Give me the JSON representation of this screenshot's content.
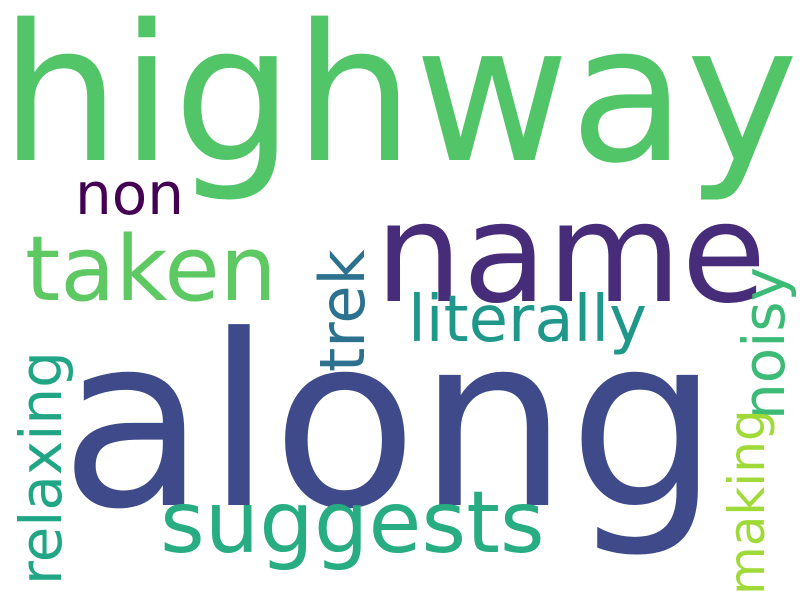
{
  "word_cloud": {
    "background": "#ffffff",
    "words": [
      {
        "text": "highway",
        "color": "#52c569",
        "orientation": "horizontal"
      },
      {
        "text": "along",
        "color": "#3e4a89",
        "orientation": "horizontal"
      },
      {
        "text": "name",
        "color": "#472c7a",
        "orientation": "horizontal"
      },
      {
        "text": "taken",
        "color": "#5ec962",
        "orientation": "horizontal"
      },
      {
        "text": "suggests",
        "color": "#27ad81",
        "orientation": "horizontal"
      },
      {
        "text": "literally",
        "color": "#1f988b",
        "orientation": "horizontal"
      },
      {
        "text": "non",
        "color": "#440154",
        "orientation": "horizontal"
      },
      {
        "text": "trek",
        "color": "#2c728e",
        "orientation": "vertical"
      },
      {
        "text": "relaxing",
        "color": "#21a685",
        "orientation": "vertical"
      },
      {
        "text": "noisy",
        "color": "#3bbb75",
        "orientation": "vertical"
      },
      {
        "text": "making",
        "color": "#a0da39",
        "orientation": "vertical"
      }
    ]
  }
}
